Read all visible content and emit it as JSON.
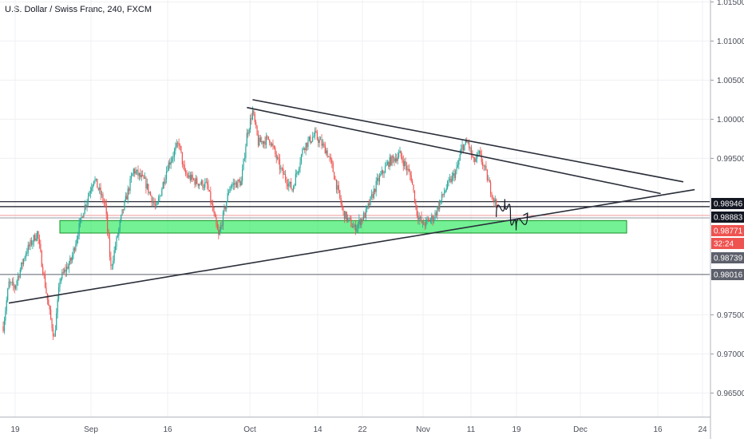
{
  "chart_data": {
    "type": "candlestick",
    "title": "U.S. Dollar / Swiss Franc, 240, FXCM",
    "x_ticks": [
      "19",
      "Sep",
      "16",
      "Oct",
      "14",
      "22",
      "Nov",
      "11",
      "19",
      "Dec",
      "16",
      "24"
    ],
    "y_ticks": [
      "1.01500",
      "1.01000",
      "1.00500",
      "1.00000",
      "0.99500",
      "0.97500",
      "0.97000",
      "0.96500"
    ],
    "ylim": [
      0.962,
      1.0175
    ],
    "grid": true,
    "candle_colors": {
      "up": "#26a69a",
      "down": "#ef5350"
    },
    "price_series": [
      {
        "day": 0,
        "price": 0.9735
      },
      {
        "day": 1,
        "price": 0.979
      },
      {
        "day": 2,
        "price": 0.9785
      },
      {
        "day": 4,
        "price": 0.983
      },
      {
        "day": 6,
        "price": 0.9855
      },
      {
        "day": 8,
        "price": 0.976
      },
      {
        "day": 9,
        "price": 0.972
      },
      {
        "day": 10,
        "price": 0.9795
      },
      {
        "day": 12,
        "price": 0.982
      },
      {
        "day": 14,
        "price": 0.988
      },
      {
        "day": 16,
        "price": 0.9925
      },
      {
        "day": 18,
        "price": 0.989
      },
      {
        "day": 19,
        "price": 0.981
      },
      {
        "day": 21,
        "price": 0.988
      },
      {
        "day": 23,
        "price": 0.9935
      },
      {
        "day": 25,
        "price": 0.992
      },
      {
        "day": 27,
        "price": 0.9885
      },
      {
        "day": 29,
        "price": 0.994
      },
      {
        "day": 31,
        "price": 0.997
      },
      {
        "day": 32,
        "price": 0.993
      },
      {
        "day": 34,
        "price": 0.992
      },
      {
        "day": 36,
        "price": 0.9915
      },
      {
        "day": 38,
        "price": 0.985
      },
      {
        "day": 40,
        "price": 0.9915
      },
      {
        "day": 42,
        "price": 0.992
      },
      {
        "day": 43,
        "price": 0.998
      },
      {
        "day": 44,
        "price": 1.001
      },
      {
        "day": 45,
        "price": 0.997
      },
      {
        "day": 47,
        "price": 0.9975
      },
      {
        "day": 49,
        "price": 0.9935
      },
      {
        "day": 51,
        "price": 0.991
      },
      {
        "day": 53,
        "price": 0.9965
      },
      {
        "day": 55,
        "price": 0.998
      },
      {
        "day": 57,
        "price": 0.996
      },
      {
        "day": 58,
        "price": 0.994
      },
      {
        "day": 60,
        "price": 0.988
      },
      {
        "day": 62,
        "price": 0.986
      },
      {
        "day": 64,
        "price": 0.988
      },
      {
        "day": 66,
        "price": 0.992
      },
      {
        "day": 68,
        "price": 0.9945
      },
      {
        "day": 70,
        "price": 0.9955
      },
      {
        "day": 72,
        "price": 0.9925
      },
      {
        "day": 73,
        "price": 0.988
      },
      {
        "day": 74,
        "price": 0.9865
      },
      {
        "day": 76,
        "price": 0.9875
      },
      {
        "day": 78,
        "price": 0.991
      },
      {
        "day": 80,
        "price": 0.9935
      },
      {
        "day": 81,
        "price": 0.9965
      },
      {
        "day": 82,
        "price": 0.997
      },
      {
        "day": 83,
        "price": 0.9945
      },
      {
        "day": 84,
        "price": 0.9955
      },
      {
        "day": 85,
        "price": 0.9935
      },
      {
        "day": 86,
        "price": 0.991
      },
      {
        "day": 87,
        "price": 0.989
      }
    ],
    "trendlines": [
      {
        "name": "Upper resistance line",
        "from": {
          "day": 44,
          "price": 1.0025
        },
        "to": {
          "day": 120,
          "price": 0.992
        }
      },
      {
        "name": "Inner resistance line",
        "from": {
          "day": 43,
          "price": 1.0015
        },
        "to": {
          "day": 116,
          "price": 0.9905
        }
      },
      {
        "name": "Ascending support line",
        "from": {
          "day": 1,
          "price": 0.9765
        },
        "to": {
          "day": 122,
          "price": 0.991
        }
      }
    ],
    "support_zone": {
      "from_day": 10,
      "to_day": 110,
      "price_low": 0.98545,
      "price_high": 0.98705
    },
    "horizontal_levels": [
      0.98946,
      0.98883,
      0.98771,
      0.98739,
      0.98016
    ],
    "projection_path": [
      {
        "day": 87,
        "price": 0.9875
      },
      {
        "day": 88.5,
        "price": 0.9898
      },
      {
        "day": 89.5,
        "price": 0.9878
      },
      {
        "day": 90.5,
        "price": 0.9858
      },
      {
        "day": 92.5,
        "price": 0.988
      }
    ],
    "price_tags": [
      {
        "text": "0.98946",
        "bg": "#131722",
        "color": "#ffffff"
      },
      {
        "text": "0.98883",
        "bg": "#131722",
        "color": "#ffffff"
      },
      {
        "text": "0.98771",
        "bg": "#ef5350",
        "color": "#ffffff"
      },
      {
        "text": "32:24",
        "bg": "#ef5350",
        "color": "#ffffff"
      },
      {
        "text": "0.98739",
        "bg": "#5d606b",
        "color": "#ffffff"
      },
      {
        "text": "0.98016",
        "bg": "#5d606b",
        "color": "#ffffff"
      }
    ]
  }
}
